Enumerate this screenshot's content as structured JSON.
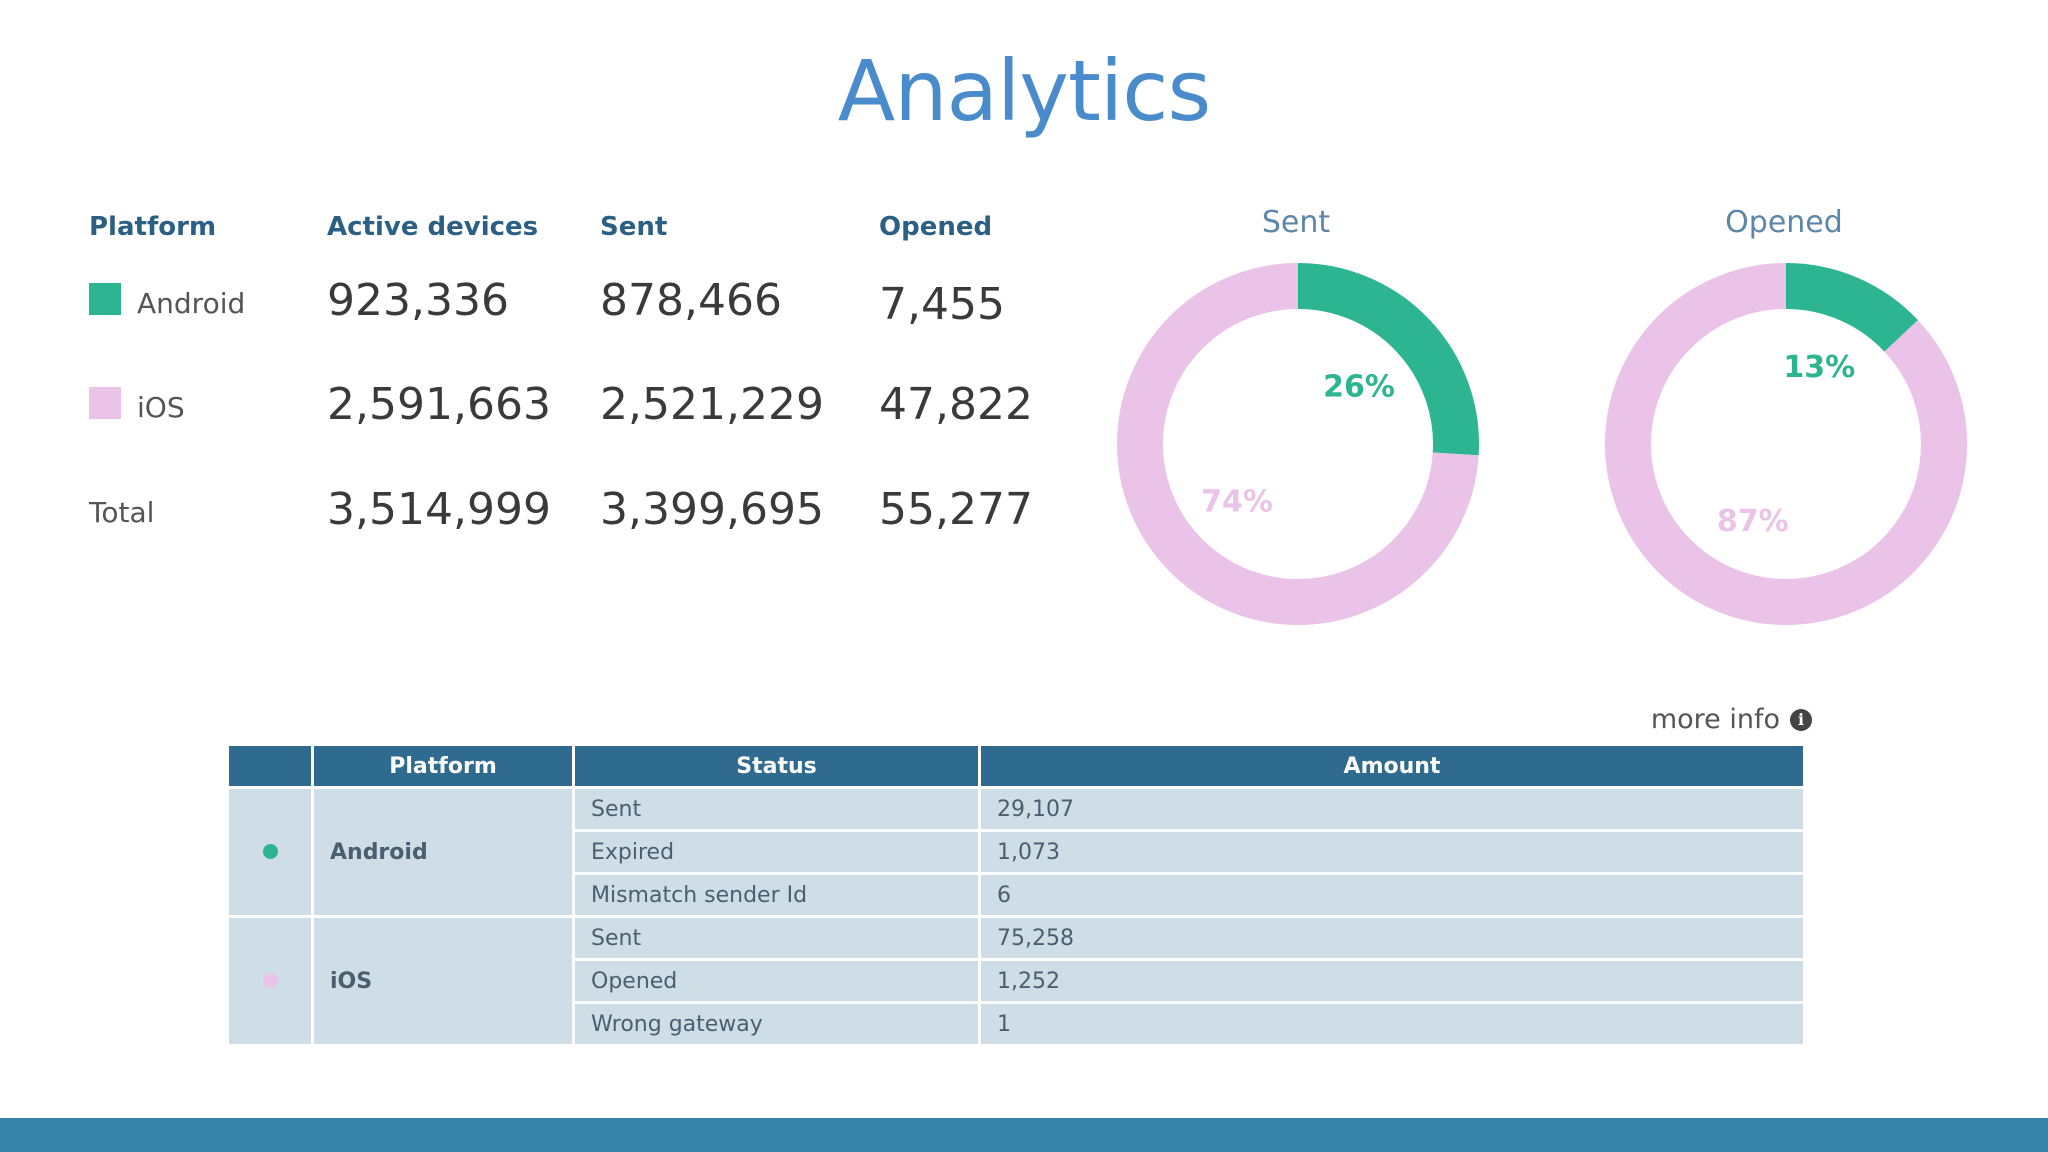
{
  "title": "Analytics",
  "summary": {
    "headers": [
      "Platform",
      "Active devices",
      "Sent",
      "Opened"
    ],
    "rows": [
      {
        "platform": "Android",
        "color": "#2db591",
        "active": "923,336",
        "sent": "878,466",
        "opened": "7,455"
      },
      {
        "platform": "iOS",
        "color": "#ebc3e9",
        "active": "2,591,663",
        "sent": "2,521,229",
        "opened": "47,822"
      },
      {
        "platform": "Total",
        "color": null,
        "active": "3,514,999",
        "sent": "3,399,695",
        "opened": "55,277"
      }
    ]
  },
  "chart_data": [
    {
      "type": "pie",
      "title": "Sent",
      "categories": [
        "Android",
        "iOS"
      ],
      "values": [
        26,
        74
      ],
      "labels": [
        "26%",
        "74%"
      ],
      "colors": [
        "#2db591",
        "#ebc3e9"
      ]
    },
    {
      "type": "pie",
      "title": "Opened",
      "categories": [
        "Android",
        "iOS"
      ],
      "values": [
        13,
        87
      ],
      "labels": [
        "13%",
        "87%"
      ],
      "colors": [
        "#2db591",
        "#ebc3e9"
      ]
    }
  ],
  "more_info": "more info",
  "detail_table": {
    "headers": [
      "",
      "Platform",
      "Status",
      "Amount"
    ],
    "groups": [
      {
        "platform": "Android",
        "color": "#2db591",
        "rows": [
          {
            "status": "Sent",
            "amount": "29,107"
          },
          {
            "status": "Expired",
            "amount": "1,073"
          },
          {
            "status": "Mismatch sender Id",
            "amount": "6"
          }
        ]
      },
      {
        "platform": "iOS",
        "color": "#ebc3e9",
        "rows": [
          {
            "status": "Sent",
            "amount": "75,258"
          },
          {
            "status": "Opened",
            "amount": "1,252"
          },
          {
            "status": "Wrong gateway",
            "amount": "1"
          }
        ]
      }
    ]
  },
  "colors": {
    "accent": "#4a8ccb",
    "header_bg": "#2f6b8e",
    "cell_bg": "#cfdde6",
    "footer": "#3784a8"
  }
}
